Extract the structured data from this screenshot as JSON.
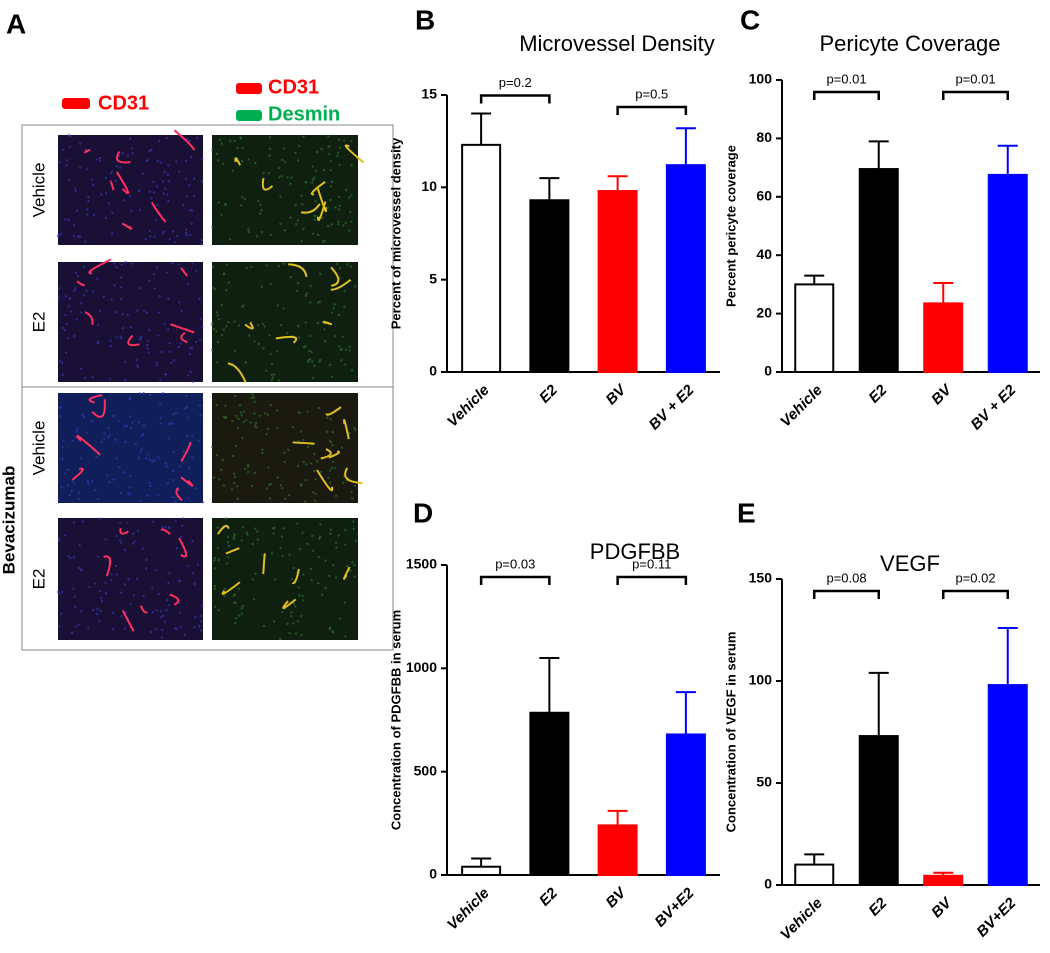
{
  "panel_a": {
    "label": "A",
    "legend_left": [
      "CD31"
    ],
    "legend_right": [
      "CD31",
      "Desmin"
    ],
    "rows": [
      "Vehicle",
      "E2",
      "Vehicle",
      "E2"
    ],
    "group": "Bevacizumab"
  },
  "chart_data": [
    {
      "type": "bar",
      "label": "B",
      "title": "Microvessel Density",
      "ylabel": "Percent of microvessel density",
      "categories": [
        "Vehicle",
        "E2",
        "BV",
        "BV + E2"
      ],
      "values": [
        12.3,
        9.3,
        9.8,
        11.2
      ],
      "errors": [
        1.7,
        1.2,
        0.8,
        2.0
      ],
      "colors": [
        "#ffffff",
        "#000000",
        "#ff0000",
        "#0000ff"
      ],
      "ylim": [
        0,
        15
      ],
      "yticks": [
        0,
        5,
        10,
        15
      ],
      "annotations": [
        {
          "text": "p=0.2",
          "between": [
            "Vehicle",
            "E2"
          ]
        },
        {
          "text": "p=0.5",
          "between": [
            "BV",
            "BV + E2"
          ]
        }
      ]
    },
    {
      "type": "bar",
      "label": "C",
      "title": "Pericyte Coverage",
      "ylabel": "Percent pericyte coverage",
      "categories": [
        "Vehicle",
        "E2",
        "BV",
        "BV + E2"
      ],
      "values": [
        30,
        69.5,
        23.5,
        67.5
      ],
      "errors": [
        3,
        9.5,
        7,
        10
      ],
      "colors": [
        "#ffffff",
        "#000000",
        "#ff0000",
        "#0000ff"
      ],
      "ylim": [
        0,
        100
      ],
      "yticks": [
        0,
        20,
        40,
        60,
        80,
        100
      ],
      "annotations": [
        {
          "text": "p=0.01",
          "between": [
            "Vehicle",
            "E2"
          ]
        },
        {
          "text": "p=0.01",
          "between": [
            "BV",
            "BV + E2"
          ]
        }
      ]
    },
    {
      "type": "bar",
      "label": "D",
      "title": "PDGFBB",
      "ylabel": "Concentration of PDGFBB in serum",
      "categories": [
        "Vehicle",
        "E2",
        "BV",
        "BV+E2"
      ],
      "values": [
        40,
        785,
        240,
        680
      ],
      "errors": [
        40,
        265,
        70,
        205
      ],
      "colors": [
        "#ffffff",
        "#000000",
        "#ff0000",
        "#0000ff"
      ],
      "ylim": [
        0,
        1500
      ],
      "yticks": [
        0,
        500,
        1000,
        1500
      ],
      "annotations": [
        {
          "text": "p=0.03",
          "between": [
            "Vehicle",
            "E2"
          ]
        },
        {
          "text": "p=0.11",
          "between": [
            "BV",
            "BV+E2"
          ]
        }
      ]
    },
    {
      "type": "bar",
      "label": "E",
      "title": "VEGF",
      "ylabel": "Concentration of VEGF in serum",
      "categories": [
        "Vehicle",
        "E2",
        "BV",
        "BV+E2"
      ],
      "values": [
        10,
        73,
        4.5,
        98
      ],
      "errors": [
        5,
        31,
        1.5,
        28
      ],
      "colors": [
        "#ffffff",
        "#000000",
        "#ff0000",
        "#0000ff"
      ],
      "ylim": [
        0,
        150
      ],
      "yticks": [
        0,
        50,
        100,
        150
      ],
      "annotations": [
        {
          "text": "p=0.08",
          "between": [
            "Vehicle",
            "E2"
          ]
        },
        {
          "text": "p=0.02",
          "between": [
            "BV",
            "BV+E2"
          ]
        }
      ]
    }
  ]
}
